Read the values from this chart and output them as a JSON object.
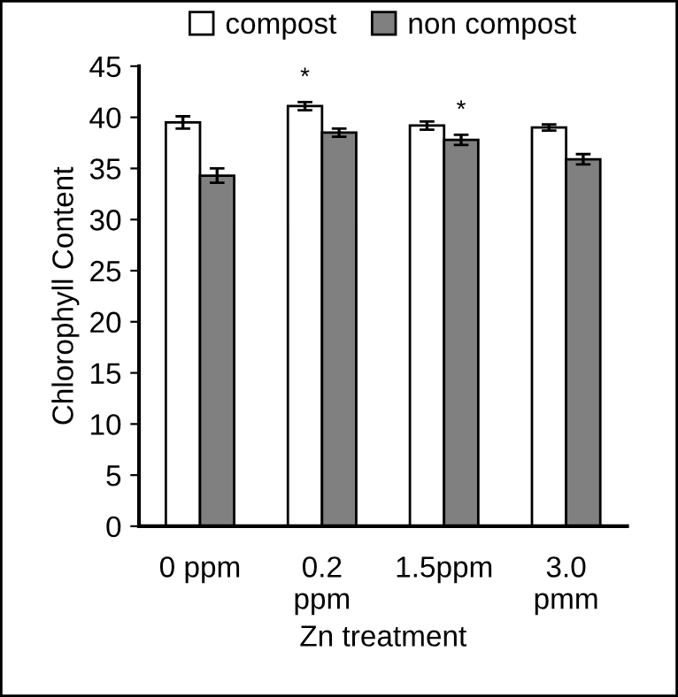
{
  "chart_data": {
    "type": "bar",
    "xlabel": "Zn treatment",
    "ylabel": "Chlorophyll Content",
    "categories": [
      "0 ppm",
      "0.2\nppm",
      "1.5ppm",
      "3.0\npmm"
    ],
    "series": [
      {
        "name": "compost",
        "color": "#ffffff",
        "values": [
          39.5,
          41.1,
          39.2,
          39.0
        ],
        "errors": [
          0.6,
          0.4,
          0.4,
          0.3
        ]
      },
      {
        "name": "non compost",
        "color": "#808080",
        "values": [
          34.3,
          38.5,
          37.8,
          35.9
        ],
        "errors": [
          0.7,
          0.4,
          0.5,
          0.5
        ]
      }
    ],
    "annotations": [
      {
        "text": "*",
        "x": "0.2\nppm",
        "y": 41.1
      },
      {
        "text": "*",
        "x": "1.5ppm",
        "y": 37.8
      }
    ],
    "ylim": [
      0,
      45
    ],
    "yticks": [
      0,
      5,
      10,
      15,
      20,
      25,
      30,
      35,
      40,
      45
    ],
    "grid": false,
    "legend": "top"
  }
}
